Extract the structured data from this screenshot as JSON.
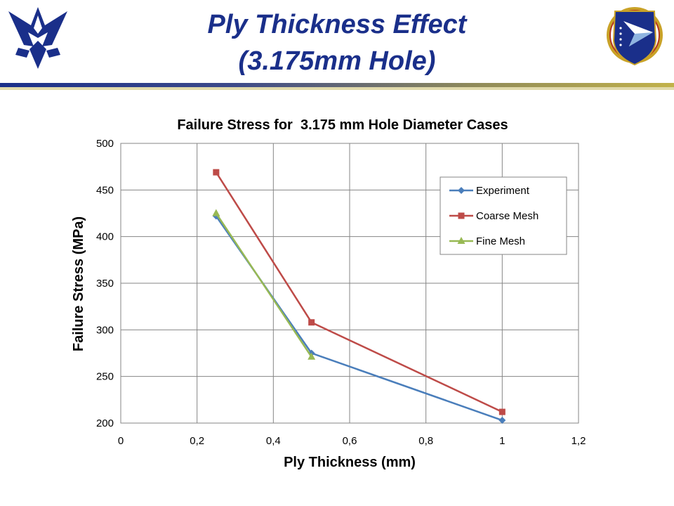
{
  "slide": {
    "title_line_1": "Ply Thickness Effect",
    "title_line_2": "(3.175mm Hole)",
    "title_color": "#1a2f8a",
    "bar_colors": [
      "#1a2f8a",
      "#b8a94a"
    ]
  },
  "logos": {
    "left": "air-force-wings-logo",
    "right": "air-force-research-laboratory-shield-logo"
  },
  "chart_data": {
    "type": "line",
    "title": "Failure Stress for  3.175 mm Hole Diameter Cases",
    "xlabel": "Ply Thickness (mm)",
    "ylabel": "Failure Stress (MPa)",
    "xlim": [
      0,
      1.2
    ],
    "ylim": [
      200,
      500
    ],
    "xticks": [
      "0",
      "0,2",
      "0,4",
      "0,6",
      "0,8",
      "1",
      "1,2"
    ],
    "yticks": [
      "200",
      "250",
      "300",
      "350",
      "400",
      "450",
      "500"
    ],
    "grid": true,
    "legend_position": "top-right",
    "series": [
      {
        "name": "Experiment",
        "color": "#4a7ebb",
        "marker": "diamond",
        "points": [
          [
            0.25,
            422
          ],
          [
            0.5,
            275
          ],
          [
            1.0,
            203
          ]
        ]
      },
      {
        "name": "Coarse Mesh",
        "color": "#be4b48",
        "marker": "square",
        "points": [
          [
            0.25,
            469
          ],
          [
            0.5,
            308
          ],
          [
            1.0,
            212
          ]
        ]
      },
      {
        "name": "Fine Mesh",
        "color": "#98b954",
        "marker": "triangle",
        "points": [
          [
            0.25,
            425
          ],
          [
            0.5,
            271
          ]
        ]
      }
    ]
  }
}
